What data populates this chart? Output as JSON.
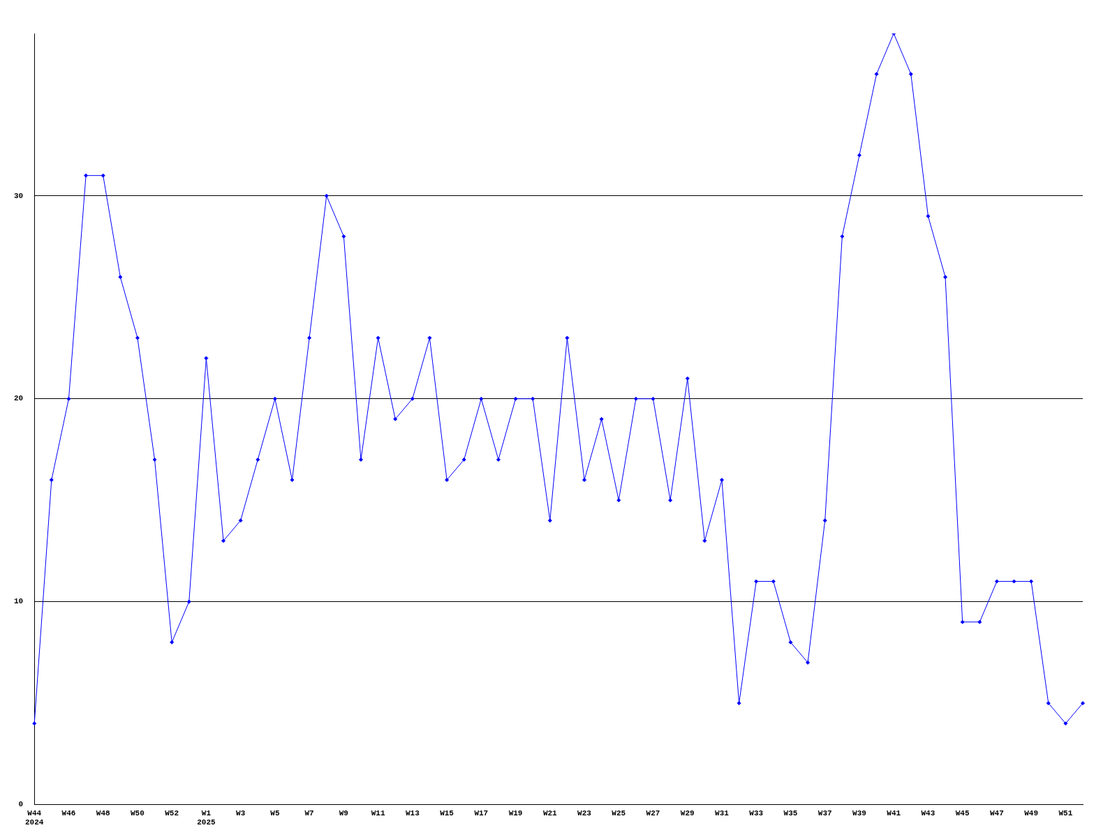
{
  "chart_data": {
    "type": "line",
    "categories": [
      "W44\n2024",
      null,
      "W46",
      null,
      "W48",
      null,
      "W50",
      null,
      "W52",
      null,
      "W1\n2025",
      null,
      "W3",
      null,
      "W5",
      null,
      "W7",
      null,
      "W9",
      null,
      "W11",
      null,
      "W13",
      null,
      "W15",
      null,
      "W17",
      null,
      "W19",
      null,
      "W21",
      null,
      "W23",
      null,
      "W25",
      null,
      "W27",
      null,
      "W29",
      null,
      "W31",
      null,
      "W33",
      null,
      "W35",
      null,
      "W37",
      null,
      "W39",
      null,
      "W41",
      null,
      "W43",
      null,
      "W45",
      null,
      "W47",
      null,
      "W49",
      null,
      "W51",
      null
    ],
    "series": [
      {
        "color": "#0000ff",
        "values": [
          4,
          16,
          20,
          31,
          31,
          26,
          23,
          17,
          8,
          10,
          22,
          13,
          14,
          17,
          20,
          16,
          23,
          30,
          28,
          17,
          23,
          19,
          20,
          23,
          16,
          17,
          20,
          17,
          20,
          20,
          14,
          23,
          16,
          19,
          15,
          20,
          20,
          15,
          21,
          13,
          16,
          5,
          11,
          11,
          8,
          7,
          14,
          28,
          32,
          36,
          38,
          36,
          29,
          26,
          9,
          9,
          11,
          11,
          11,
          5,
          4,
          5
        ]
      }
    ],
    "ylim": [
      0,
      38
    ],
    "yticks": [
      0,
      10,
      20,
      30
    ],
    "grid": "y",
    "legend": false,
    "marker": "diamond",
    "line_style": "solid"
  }
}
